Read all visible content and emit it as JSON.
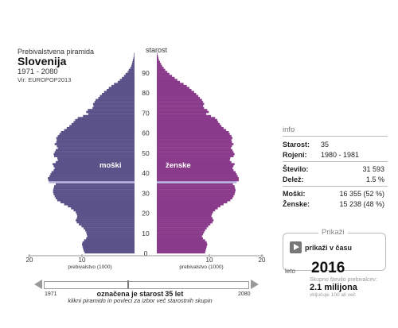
{
  "header": {
    "subtitle": "Prebivalstvena piramida",
    "title": "Slovenija",
    "years": "1971 - 2080",
    "source": "Vir: EUROPOP2013"
  },
  "chart_data": {
    "type": "bar",
    "orientation": "horizontal",
    "subtype": "population pyramid",
    "y_axis_label": "starost",
    "y_range": [
      0,
      100
    ],
    "y_ticks": [
      0,
      10,
      20,
      30,
      40,
      50,
      60,
      70,
      80,
      90
    ],
    "x_ticks_left": [
      "20",
      "10"
    ],
    "x_ticks_right": [
      "10",
      "20"
    ],
    "x_axis_label_left": "prebivalstvo (1000)",
    "x_axis_label_right": "prebivalstvo (1000)",
    "x_max": 20,
    "label_male": "moški",
    "label_female": "ženske",
    "highlight_age": 35,
    "colors": {
      "male": "#5b5289",
      "female": "#8a3a8a",
      "highlight": "#b9b6e0"
    },
    "male": [
      9.5,
      9.7,
      9.8,
      9.9,
      10.0,
      9.9,
      9.6,
      9.2,
      9.0,
      9.1,
      9.2,
      9.4,
      9.7,
      10.1,
      10.6,
      11.0,
      11.2,
      11.0,
      10.9,
      11.0,
      11.2,
      11.6,
      12.1,
      12.7,
      13.4,
      14.1,
      14.7,
      15.0,
      15.2,
      15.4,
      15.5,
      15.5,
      15.4,
      15.3,
      15.0,
      16.3,
      16.4,
      16.5,
      16.2,
      16.0,
      15.8,
      15.4,
      15.2,
      15.4,
      15.6,
      15.0,
      14.6,
      14.7,
      15.3,
      15.4,
      15.2,
      15.0,
      14.6,
      14.8,
      15.2,
      14.9,
      14.8,
      14.9,
      14.6,
      14.3,
      14.0,
      13.4,
      12.9,
      12.4,
      12.0,
      11.6,
      11.3,
      10.8,
      9.8,
      8.8,
      9.2,
      8.9,
      8.0,
      7.8,
      7.9,
      7.6,
      7.4,
      6.9,
      6.6,
      6.2,
      5.8,
      5.3,
      4.9,
      4.4,
      3.9,
      3.2,
      2.8,
      2.4,
      2.0,
      1.7,
      1.3,
      1.1,
      0.8,
      0.6,
      0.5,
      0.4,
      0.3,
      0.2,
      0.1,
      0.1
    ],
    "female": [
      9.2,
      9.3,
      9.4,
      9.5,
      9.6,
      9.5,
      9.2,
      8.8,
      8.6,
      8.8,
      9.0,
      9.2,
      9.5,
      9.8,
      10.2,
      10.6,
      10.8,
      10.6,
      10.4,
      10.5,
      10.7,
      11.1,
      11.6,
      12.1,
      12.7,
      13.4,
      14.0,
      14.4,
      14.6,
      14.8,
      14.9,
      15.0,
      14.9,
      14.8,
      14.5,
      15.2,
      15.6,
      15.6,
      15.4,
      15.2,
      15.0,
      14.6,
      14.4,
      14.6,
      14.8,
      14.2,
      13.9,
      14.0,
      14.6,
      14.8,
      14.6,
      14.4,
      14.1,
      14.3,
      14.6,
      14.3,
      14.2,
      14.4,
      14.2,
      13.9,
      13.7,
      13.2,
      12.7,
      12.3,
      12.0,
      11.7,
      11.5,
      11.1,
      10.3,
      9.4,
      9.9,
      9.6,
      9.0,
      8.8,
      9.0,
      8.8,
      8.6,
      8.2,
      7.9,
      7.5,
      7.1,
      6.6,
      6.2,
      5.7,
      5.1,
      4.4,
      3.9,
      3.4,
      2.9,
      2.4,
      2.0,
      1.6,
      1.3,
      1.0,
      0.8,
      0.6,
      0.4,
      0.3,
      0.2,
      0.1
    ]
  },
  "info": {
    "header": "info",
    "starost_label": "Starost:",
    "starost_value": "35",
    "rojeni_label": "Rojeni:",
    "rojeni_value": "1980 - 1981",
    "stevilo_label": "Število:",
    "stevilo_value": "31 593",
    "delez_label": "Delež:",
    "delez_value": "1.5 %",
    "moski_label": "Moški:",
    "moski_value": "16 355 (52 %)",
    "zenske_label": "Ženske:",
    "zenske_value": "15 238 (48 %)"
  },
  "time": {
    "section_label": "Prikaži",
    "play_label": "prikaži v času",
    "leto_label": "leto",
    "year": "2016",
    "population_sub": "Skupno število prebivalcev:",
    "population_value": "2.1 milijona",
    "population_note": "vključuje 100 ali več"
  },
  "slider": {
    "start": "1971",
    "end": "2080",
    "caption_prefix": "označena je starost",
    "caption_value": "35 let",
    "hint": "klikni piramido in povleci za izbor več starostnih skupin"
  }
}
